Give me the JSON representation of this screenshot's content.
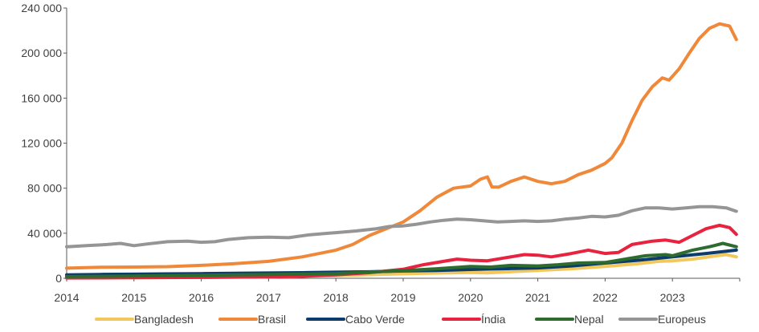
{
  "chart_data": {
    "type": "line",
    "title": "",
    "xlabel": "",
    "ylabel": "",
    "xlim": [
      2014,
      2024
    ],
    "ylim": [
      0,
      240000
    ],
    "x_ticks": [
      "2014",
      "2015",
      "2016",
      "2017",
      "2018",
      "2019",
      "2020",
      "2021",
      "2022",
      "2023"
    ],
    "y_ticks": [
      "0",
      "40 000",
      "80 000",
      "120 000",
      "160 000",
      "200 000",
      "240 000"
    ],
    "grid": false,
    "legend_position": "bottom",
    "series": [
      {
        "name": "Bangladesh",
        "color": "#F2C75C",
        "points": [
          [
            2014,
            500
          ],
          [
            2015,
            600
          ],
          [
            2016,
            800
          ],
          [
            2017,
            1200
          ],
          [
            2017.5,
            1800
          ],
          [
            2018,
            2500
          ],
          [
            2018.5,
            3200
          ],
          [
            2019,
            4000
          ],
          [
            2019.5,
            4600
          ],
          [
            2020,
            5200
          ],
          [
            2020.25,
            4800
          ],
          [
            2020.5,
            5500
          ],
          [
            2021,
            7000
          ],
          [
            2021.5,
            8500
          ],
          [
            2022,
            10500
          ],
          [
            2022.5,
            13000
          ],
          [
            2022.8,
            15000
          ],
          [
            2023,
            15500
          ],
          [
            2023.3,
            17000
          ],
          [
            2023.6,
            19500
          ],
          [
            2023.8,
            21000
          ],
          [
            2023.95,
            19000
          ]
        ]
      },
      {
        "name": "Brasil",
        "color": "#F0883A",
        "points": [
          [
            2014,
            9000
          ],
          [
            2014.5,
            9800
          ],
          [
            2015,
            10000
          ],
          [
            2015.5,
            10300
          ],
          [
            2016,
            11500
          ],
          [
            2016.5,
            13000
          ],
          [
            2017,
            15000
          ],
          [
            2017.5,
            19000
          ],
          [
            2018,
            25000
          ],
          [
            2018.25,
            30000
          ],
          [
            2018.5,
            38000
          ],
          [
            2018.75,
            44000
          ],
          [
            2019,
            50000
          ],
          [
            2019.25,
            60000
          ],
          [
            2019.5,
            72000
          ],
          [
            2019.75,
            80000
          ],
          [
            2020,
            82000
          ],
          [
            2020.15,
            88000
          ],
          [
            2020.25,
            90000
          ],
          [
            2020.32,
            81000
          ],
          [
            2020.42,
            81000
          ],
          [
            2020.6,
            86000
          ],
          [
            2020.8,
            90000
          ],
          [
            2021,
            86000
          ],
          [
            2021.2,
            84000
          ],
          [
            2021.4,
            86000
          ],
          [
            2021.6,
            92000
          ],
          [
            2021.8,
            96000
          ],
          [
            2022,
            102000
          ],
          [
            2022.1,
            107000
          ],
          [
            2022.25,
            120000
          ],
          [
            2022.4,
            140000
          ],
          [
            2022.55,
            158000
          ],
          [
            2022.7,
            170000
          ],
          [
            2022.85,
            178000
          ],
          [
            2022.95,
            176000
          ],
          [
            2023.1,
            186000
          ],
          [
            2023.25,
            200000
          ],
          [
            2023.4,
            213000
          ],
          [
            2023.55,
            222000
          ],
          [
            2023.7,
            226000
          ],
          [
            2023.85,
            224000
          ],
          [
            2023.95,
            212000
          ]
        ]
      },
      {
        "name": "Cabo Verde",
        "color": "#0B3C6C",
        "points": [
          [
            2014,
            3000
          ],
          [
            2014.5,
            3400
          ],
          [
            2015,
            3600
          ],
          [
            2015.5,
            3900
          ],
          [
            2016,
            4100
          ],
          [
            2016.5,
            4400
          ],
          [
            2017,
            4700
          ],
          [
            2017.5,
            5000
          ],
          [
            2018,
            5400
          ],
          [
            2018.5,
            5800
          ],
          [
            2019,
            6500
          ],
          [
            2019.5,
            7000
          ],
          [
            2020,
            7800
          ],
          [
            2020.5,
            8500
          ],
          [
            2021,
            9200
          ],
          [
            2021.5,
            11000
          ],
          [
            2022,
            13500
          ],
          [
            2022.5,
            16000
          ],
          [
            2023,
            19000
          ],
          [
            2023.5,
            22000
          ],
          [
            2023.95,
            25000
          ]
        ]
      },
      {
        "name": "Índia",
        "color": "#E8233F",
        "points": [
          [
            2014,
            300
          ],
          [
            2015,
            500
          ],
          [
            2016,
            800
          ],
          [
            2017,
            1200
          ],
          [
            2017.5,
            1800
          ],
          [
            2018,
            3000
          ],
          [
            2018.5,
            5000
          ],
          [
            2019,
            8000
          ],
          [
            2019.3,
            12000
          ],
          [
            2019.6,
            15000
          ],
          [
            2019.8,
            17000
          ],
          [
            2020,
            16000
          ],
          [
            2020.25,
            15500
          ],
          [
            2020.5,
            18000
          ],
          [
            2020.8,
            21000
          ],
          [
            2021,
            20500
          ],
          [
            2021.2,
            19000
          ],
          [
            2021.5,
            22000
          ],
          [
            2021.75,
            25000
          ],
          [
            2022,
            22000
          ],
          [
            2022.2,
            23000
          ],
          [
            2022.4,
            30000
          ],
          [
            2022.7,
            33000
          ],
          [
            2022.9,
            34000
          ],
          [
            2023.1,
            32000
          ],
          [
            2023.3,
            38000
          ],
          [
            2023.5,
            44000
          ],
          [
            2023.7,
            47000
          ],
          [
            2023.85,
            45000
          ],
          [
            2023.95,
            39000
          ]
        ]
      },
      {
        "name": "Nepal",
        "color": "#2E6B2E",
        "points": [
          [
            2014,
            1500
          ],
          [
            2014.5,
            1700
          ],
          [
            2015,
            2000
          ],
          [
            2015.5,
            2300
          ],
          [
            2016,
            2600
          ],
          [
            2016.5,
            3000
          ],
          [
            2017,
            3300
          ],
          [
            2017.5,
            3700
          ],
          [
            2018,
            4200
          ],
          [
            2018.5,
            5500
          ],
          [
            2019,
            6800
          ],
          [
            2019.5,
            8500
          ],
          [
            2020,
            10500
          ],
          [
            2020.3,
            10000
          ],
          [
            2020.6,
            11500
          ],
          [
            2021,
            11000
          ],
          [
            2021.3,
            12000
          ],
          [
            2021.6,
            13500
          ],
          [
            2022,
            14000
          ],
          [
            2022.3,
            17000
          ],
          [
            2022.6,
            20000
          ],
          [
            2022.9,
            21000
          ],
          [
            2023,
            20000
          ],
          [
            2023.3,
            25000
          ],
          [
            2023.55,
            28000
          ],
          [
            2023.75,
            31000
          ],
          [
            2023.95,
            28000
          ]
        ]
      },
      {
        "name": "Europeus",
        "color": "#959595",
        "points": [
          [
            2014,
            28000
          ],
          [
            2014.3,
            29000
          ],
          [
            2014.6,
            30000
          ],
          [
            2014.8,
            31000
          ],
          [
            2015,
            29000
          ],
          [
            2015.2,
            30500
          ],
          [
            2015.5,
            32500
          ],
          [
            2015.8,
            33000
          ],
          [
            2016,
            32000
          ],
          [
            2016.2,
            32500
          ],
          [
            2016.4,
            34500
          ],
          [
            2016.7,
            36000
          ],
          [
            2017,
            36500
          ],
          [
            2017.3,
            36000
          ],
          [
            2017.6,
            38500
          ],
          [
            2017.9,
            40000
          ],
          [
            2018,
            40500
          ],
          [
            2018.3,
            42000
          ],
          [
            2018.6,
            44000
          ],
          [
            2018.8,
            46000
          ],
          [
            2019,
            46500
          ],
          [
            2019.2,
            48000
          ],
          [
            2019.4,
            50000
          ],
          [
            2019.6,
            51500
          ],
          [
            2019.8,
            52500
          ],
          [
            2020,
            52000
          ],
          [
            2020.2,
            51000
          ],
          [
            2020.4,
            50000
          ],
          [
            2020.6,
            50500
          ],
          [
            2020.8,
            51000
          ],
          [
            2021,
            50500
          ],
          [
            2021.2,
            51000
          ],
          [
            2021.4,
            52500
          ],
          [
            2021.6,
            53500
          ],
          [
            2021.8,
            55000
          ],
          [
            2022,
            54500
          ],
          [
            2022.2,
            56000
          ],
          [
            2022.4,
            60000
          ],
          [
            2022.6,
            62500
          ],
          [
            2022.8,
            62500
          ],
          [
            2023,
            61500
          ],
          [
            2023.2,
            62500
          ],
          [
            2023.4,
            63500
          ],
          [
            2023.6,
            63500
          ],
          [
            2023.8,
            62500
          ],
          [
            2023.95,
            59500
          ]
        ]
      }
    ]
  }
}
